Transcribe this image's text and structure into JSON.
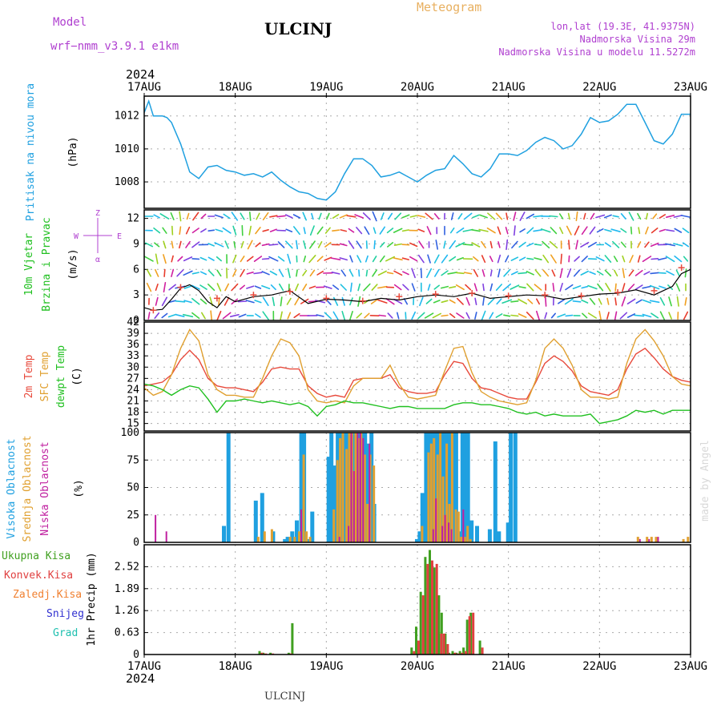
{
  "header": {
    "model_label": "Model",
    "model_name": "wrf−nmm_v3.9.1  e1km",
    "station": "ULCINJ",
    "product": "Meteogram",
    "lonlat": "lon,lat (19.3E, 41.9375N)",
    "elevation": "Nadmorska Visina 29m",
    "model_elevation": "Nadmorska Visina u modelu 11.5272m",
    "year_top": "2024",
    "year_bottom": "2024",
    "footer_station": "ULCINJ",
    "watermark": "made by Angel"
  },
  "colors": {
    "pressure": "#1fa0e0",
    "temp2m": "#e84a3c",
    "sfc": "#e0a030",
    "dewpt": "#20c020",
    "high_cloud": "#1fa0e0",
    "mid_cloud": "#e0a030",
    "low_cloud": "#c020a0",
    "total_precip": "#40a020",
    "conv_precip": "#e04040",
    "frozen": "#f08030",
    "snow": "#3030d0",
    "hail": "#20c0b0",
    "model_color": "#b040d0",
    "product_color": "#e8b060"
  },
  "x_axis": {
    "ticks": [
      "17AUG",
      "18AUG",
      "19AUG",
      "20AUG",
      "21AUG",
      "22AUG",
      "23AUG"
    ],
    "range_days": [
      0,
      6
    ]
  },
  "chart_data": [
    {
      "type": "line",
      "panel": "pressure",
      "ylabel_1": "Pritisak na nivou mora",
      "ylabel_2": "(hPa)",
      "ylim": [
        1006.4,
        1013.2
      ],
      "yticks": [
        "1008",
        "1010",
        "1012"
      ],
      "ytick_values": [
        1008,
        1010,
        1012
      ],
      "grid": true,
      "x": [
        0,
        0.05,
        0.1,
        0.15,
        0.2,
        0.25,
        0.3,
        0.4,
        0.5,
        0.6,
        0.7,
        0.8,
        0.9,
        1.0,
        1.1,
        1.2,
        1.3,
        1.4,
        1.5,
        1.6,
        1.7,
        1.8,
        1.9,
        2.0,
        2.1,
        2.2,
        2.3,
        2.4,
        2.5,
        2.6,
        2.7,
        2.8,
        2.9,
        3.0,
        3.1,
        3.2,
        3.3,
        3.4,
        3.5,
        3.6,
        3.7,
        3.8,
        3.9,
        4.0,
        4.1,
        4.2,
        4.3,
        4.4,
        4.5,
        4.6,
        4.7,
        4.8,
        4.9,
        5.0,
        5.1,
        5.2,
        5.3,
        5.4,
        5.5,
        5.6,
        5.7,
        5.8,
        5.9,
        6.0
      ],
      "values": [
        1012.2,
        1012.9,
        1012.0,
        1012.0,
        1012.0,
        1011.9,
        1011.6,
        1010.3,
        1008.6,
        1008.2,
        1008.9,
        1009.0,
        1008.7,
        1008.6,
        1008.4,
        1008.5,
        1008.3,
        1008.6,
        1008.1,
        1007.7,
        1007.4,
        1007.3,
        1007.0,
        1006.9,
        1007.4,
        1008.5,
        1009.4,
        1009.4,
        1009.0,
        1008.3,
        1008.4,
        1008.6,
        1008.3,
        1008.0,
        1008.4,
        1008.7,
        1008.8,
        1009.6,
        1009.1,
        1008.5,
        1008.3,
        1008.8,
        1009.7,
        1009.7,
        1009.6,
        1009.9,
        1010.4,
        1010.7,
        1010.5,
        1010.0,
        1010.2,
        1010.9,
        1011.9,
        1011.6,
        1011.7,
        1012.1,
        1012.7,
        1012.7,
        1011.6,
        1010.5,
        1010.3,
        1010.9,
        1012.1,
        1012.1
      ]
    },
    {
      "type": "line",
      "panel": "wind",
      "ylabel_1": "10m Vjetar",
      "ylabel_2": "Brzina i Pravac",
      "ylabel_3": "(m/s)",
      "compass": {
        "n": "Z",
        "s": "α",
        "w": "W",
        "e": "E"
      },
      "ylim": [
        0,
        13
      ],
      "yticks": [
        "0",
        "3",
        "6",
        "9",
        "12"
      ],
      "ytick_values": [
        0,
        3,
        6,
        9,
        12
      ],
      "grid": true,
      "x": [
        0,
        0.1,
        0.2,
        0.3,
        0.4,
        0.5,
        0.6,
        0.7,
        0.8,
        0.9,
        1.0,
        1.2,
        1.4,
        1.6,
        1.8,
        2.0,
        2.2,
        2.4,
        2.6,
        2.8,
        3.0,
        3.2,
        3.4,
        3.6,
        3.8,
        4.0,
        4.2,
        4.4,
        4.6,
        4.8,
        5.0,
        5.2,
        5.4,
        5.6,
        5.8,
        5.9,
        6.0
      ],
      "values": [
        1.5,
        1.2,
        1.3,
        2.5,
        3.8,
        4.2,
        3.5,
        2.2,
        1.5,
        2.8,
        2.2,
        2.8,
        3.0,
        3.5,
        2.0,
        2.5,
        2.4,
        2.2,
        2.6,
        2.4,
        2.8,
        3.0,
        2.8,
        3.2,
        2.6,
        2.8,
        3.0,
        2.9,
        2.5,
        2.8,
        3.1,
        3.2,
        3.6,
        3.0,
        4.0,
        5.5,
        6.0
      ],
      "gust_x": [
        0.1,
        0.4,
        0.8,
        1.2,
        1.6,
        2.0,
        2.4,
        2.8,
        3.2,
        3.6,
        4.0,
        4.4,
        4.8,
        5.2,
        5.6,
        5.9
      ],
      "gust_values": [
        1.2,
        3.9,
        2.6,
        3.0,
        3.4,
        2.6,
        2.3,
        2.8,
        3.1,
        3.2,
        2.9,
        3.0,
        2.9,
        3.3,
        3.5,
        6.2
      ]
    },
    {
      "type": "line",
      "panel": "temperature",
      "ylabel_1": "2m Temp",
      "ylabel_2": "SFC Temp",
      "ylabel_3": "dewpt Temp",
      "ylabel_4": "(C)",
      "ylim": [
        13,
        42
      ],
      "yticks": [
        "15",
        "18",
        "21",
        "24",
        "27",
        "30",
        "33",
        "36",
        "39",
        "42"
      ],
      "ytick_values": [
        15,
        18,
        21,
        24,
        27,
        30,
        33,
        36,
        39,
        42
      ],
      "grid": true,
      "x": [
        0,
        0.1,
        0.2,
        0.3,
        0.4,
        0.5,
        0.6,
        0.7,
        0.8,
        0.9,
        1.0,
        1.1,
        1.2,
        1.3,
        1.4,
        1.5,
        1.6,
        1.7,
        1.8,
        1.9,
        2.0,
        2.1,
        2.2,
        2.3,
        2.4,
        2.5,
        2.6,
        2.7,
        2.8,
        2.9,
        3.0,
        3.1,
        3.2,
        3.3,
        3.4,
        3.5,
        3.6,
        3.7,
        3.8,
        3.9,
        4.0,
        4.1,
        4.2,
        4.3,
        4.4,
        4.5,
        4.6,
        4.7,
        4.8,
        4.9,
        5.0,
        5.1,
        5.2,
        5.3,
        5.4,
        5.5,
        5.6,
        5.7,
        5.8,
        5.9,
        6.0
      ],
      "series": [
        {
          "name": "2m Temp",
          "values": [
            25,
            25.5,
            26,
            28,
            32,
            34.5,
            32,
            27,
            25,
            24.5,
            24.5,
            24,
            23.5,
            26,
            29.5,
            30,
            29.5,
            29.5,
            25,
            23,
            22,
            22.5,
            22,
            26.5,
            27,
            27,
            27,
            28,
            24.5,
            23.5,
            23,
            23,
            23.5,
            28,
            31.5,
            31,
            27,
            24.5,
            24,
            23,
            22,
            21.5,
            21.5,
            26,
            31,
            33,
            31.5,
            29,
            25,
            23.5,
            23,
            22.5,
            24,
            29.5,
            33.5,
            35,
            32.5,
            29.5,
            27.5,
            26.5,
            26
          ]
        },
        {
          "name": "SFC Temp",
          "values": [
            24.5,
            22.5,
            23.5,
            28,
            35,
            40,
            37,
            28,
            24,
            22.5,
            22.5,
            22,
            22,
            27,
            33,
            37.5,
            36.5,
            33,
            24,
            21,
            20.5,
            21,
            20.5,
            25,
            27,
            27,
            27,
            30.5,
            25.5,
            22,
            21.5,
            22,
            22.5,
            29,
            35,
            35.5,
            28.5,
            23.5,
            22,
            21,
            20.5,
            20,
            20.5,
            26.5,
            35,
            37.5,
            35,
            30.5,
            24,
            22,
            22,
            21.5,
            22,
            31,
            37.5,
            40,
            37,
            33,
            27.5,
            25.5,
            25
          ]
        },
        {
          "name": "dewpt Temp",
          "values": [
            25.5,
            25,
            24,
            22.5,
            24,
            25,
            24.5,
            21.5,
            18,
            21,
            21,
            21.5,
            21,
            20.5,
            21,
            20.5,
            20,
            20.5,
            19.5,
            17,
            19.5,
            20,
            21,
            20.5,
            20.5,
            20,
            19.5,
            19,
            19.5,
            19.5,
            19,
            19,
            19,
            19,
            20,
            20.5,
            20.5,
            20,
            20,
            19.5,
            19,
            18,
            17.5,
            18,
            17,
            17.5,
            17,
            17,
            17,
            17.5,
            15,
            15.5,
            16,
            17,
            18.5,
            18,
            18.5,
            17.5,
            18.5,
            18.5,
            18.5
          ]
        }
      ]
    },
    {
      "type": "bar",
      "panel": "cloud",
      "ylabel_1": "Visoka Oblacnost",
      "ylabel_2": "Srednja Oblacnost",
      "ylabel_3": "Niska Oblacnost",
      "ylabel_4": "(%)",
      "ylim": [
        0,
        100
      ],
      "yticks": [
        "0",
        "25",
        "50",
        "75",
        "100"
      ],
      "ytick_values": [
        0,
        25,
        50,
        75,
        100
      ],
      "grid": true,
      "x": [
        0.08,
        0.2,
        0.88,
        0.93,
        1.23,
        1.3,
        1.38,
        1.42,
        1.55,
        1.58,
        1.63,
        1.68,
        1.73,
        1.76,
        1.8,
        1.85,
        2.03,
        2.06,
        2.1,
        2.13,
        2.16,
        2.2,
        2.23,
        2.26,
        2.3,
        2.33,
        2.36,
        2.4,
        2.43,
        2.46,
        2.5,
        2.53,
        2.56,
        2.6,
        2.63,
        2.66,
        2.7,
        3.0,
        3.03,
        3.06,
        3.1,
        3.13,
        3.16,
        3.2,
        3.23,
        3.26,
        3.3,
        3.33,
        3.36,
        3.4,
        3.43,
        3.46,
        3.5,
        3.53,
        3.56,
        3.6,
        3.66,
        3.73,
        3.8,
        3.86,
        3.9,
        4.0,
        4.03,
        4.08,
        5.4,
        5.5,
        5.55,
        5.6,
        5.9,
        5.95
      ],
      "series": [
        {
          "name": "Visoka Oblacnost",
          "values": [
            0,
            0,
            15,
            100,
            38,
            45,
            0,
            10,
            3,
            5,
            10,
            20,
            100,
            100,
            3,
            28,
            78,
            100,
            70,
            100,
            100,
            100,
            100,
            100,
            100,
            100,
            100,
            100,
            100,
            90,
            100,
            35,
            0,
            0,
            0,
            0,
            0,
            3,
            10,
            45,
            100,
            100,
            100,
            100,
            100,
            100,
            100,
            100,
            100,
            100,
            100,
            10,
            100,
            100,
            100,
            20,
            15,
            0,
            12,
            92,
            10,
            18,
            100,
            100,
            0,
            0,
            0,
            0,
            0,
            0
          ]
        },
        {
          "name": "Srednja Oblacnost",
          "values": [
            0,
            0,
            0,
            0,
            5,
            10,
            12,
            0,
            0,
            5,
            5,
            10,
            80,
            10,
            5,
            0,
            0,
            30,
            75,
            95,
            100,
            85,
            100,
            100,
            100,
            95,
            100,
            80,
            35,
            80,
            70,
            0,
            0,
            0,
            0,
            0,
            0,
            0,
            15,
            0,
            82,
            90,
            95,
            80,
            100,
            60,
            90,
            35,
            100,
            30,
            28,
            5,
            5,
            15,
            3,
            0,
            0,
            0,
            0,
            0,
            0,
            0,
            0,
            0,
            5,
            5,
            5,
            5,
            3,
            5
          ]
        },
        {
          "name": "Niska Oblacnost",
          "values": [
            25,
            10,
            0,
            0,
            0,
            0,
            0,
            0,
            0,
            0,
            0,
            30,
            0,
            0,
            0,
            0,
            0,
            0,
            5,
            0,
            0,
            15,
            100,
            65,
            100,
            100,
            95,
            0,
            90,
            0,
            0,
            0,
            0,
            0,
            0,
            0,
            0,
            0,
            0,
            0,
            0,
            12,
            40,
            0,
            15,
            25,
            18,
            12,
            0,
            0,
            0,
            30,
            0,
            0,
            0,
            0,
            0,
            0,
            0,
            0,
            0,
            0,
            0,
            0,
            3,
            3,
            0,
            5,
            0,
            0
          ]
        }
      ]
    },
    {
      "type": "bar",
      "panel": "precip",
      "ylabel_1": "1hr Precip",
      "ylabel_2": "(mm)",
      "legend": [
        "Ukupna Kisa",
        "Konvek.Kisa",
        "Zaledj.Kisa",
        "Snijeg",
        "Grad"
      ],
      "ylim": [
        0,
        3.15
      ],
      "yticks": [
        "0",
        "0.63",
        "1.26",
        "1.89",
        "2.52"
      ],
      "ytick_values": [
        0,
        0.63,
        1.26,
        1.89,
        2.52
      ],
      "grid": true,
      "x": [
        1.28,
        1.32,
        1.4,
        1.6,
        1.64,
        2.95,
        3.0,
        3.05,
        3.1,
        3.15,
        3.2,
        3.25,
        3.28,
        3.32,
        3.36,
        3.4,
        3.44,
        3.48,
        3.52,
        3.56,
        3.6,
        3.7
      ],
      "series": [
        {
          "name": "Ukupna Kisa",
          "values": [
            0.1,
            0.05,
            0.05,
            0.05,
            0.9,
            0.2,
            0.8,
            1.8,
            2.8,
            3.0,
            2.5,
            1.7,
            1.2,
            0.6,
            0.05,
            0.1,
            0.05,
            0.1,
            0.2,
            1.0,
            1.2,
            0.4
          ]
        },
        {
          "name": "Konvek.Kisa",
          "values": [
            0.05,
            0.03,
            0.03,
            0.03,
            0.0,
            0.1,
            0.4,
            1.7,
            2.6,
            2.7,
            2.6,
            0.6,
            0.6,
            0.3,
            0.0,
            0.05,
            0.03,
            0.05,
            0.1,
            1.1,
            1.2,
            0.2
          ]
        }
      ]
    }
  ]
}
